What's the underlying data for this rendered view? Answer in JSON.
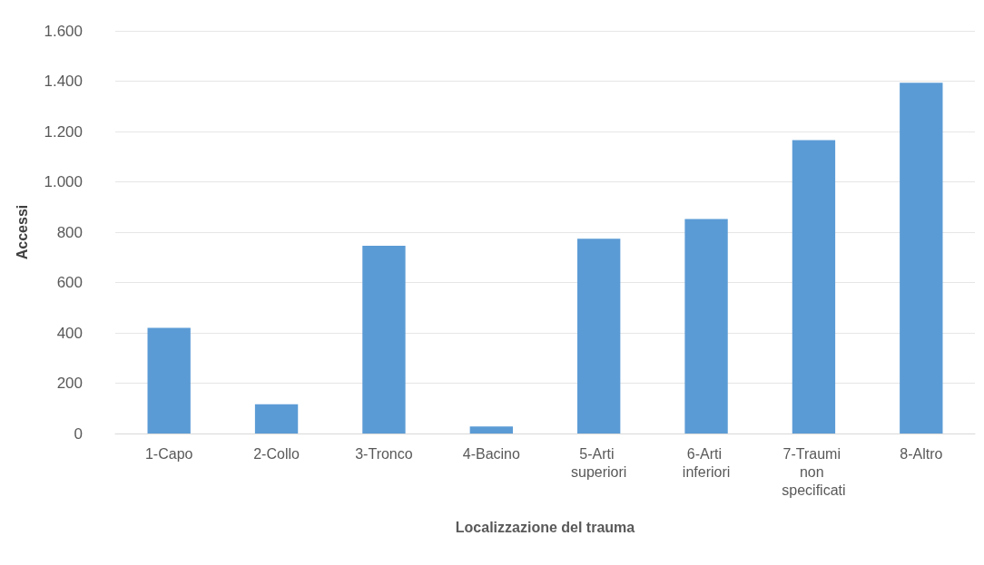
{
  "chart_data": {
    "type": "bar",
    "xlabel": "Localizzazione del trauma",
    "ylabel": "Accessi",
    "categories": [
      "1-Capo",
      "2-Collo",
      "3-Tronco",
      "4-Bacino",
      "5-Arti superiori",
      "6-Arti inferiori",
      "7-Traumi non specificati",
      "8-Altro"
    ],
    "values": [
      420,
      116,
      746,
      28,
      774,
      852,
      1166,
      1394
    ],
    "color": "#5b9bd5",
    "ylim": [
      0,
      1600
    ],
    "yticks": [
      0,
      200,
      400,
      600,
      800,
      {
        "value": 1000,
        "label": "1.000"
      },
      {
        "value": 1200,
        "label": "1.200"
      },
      {
        "value": 1400,
        "label": "1.400"
      },
      {
        "value": 1600,
        "label": "1.600"
      }
    ],
    "grid": "y"
  }
}
